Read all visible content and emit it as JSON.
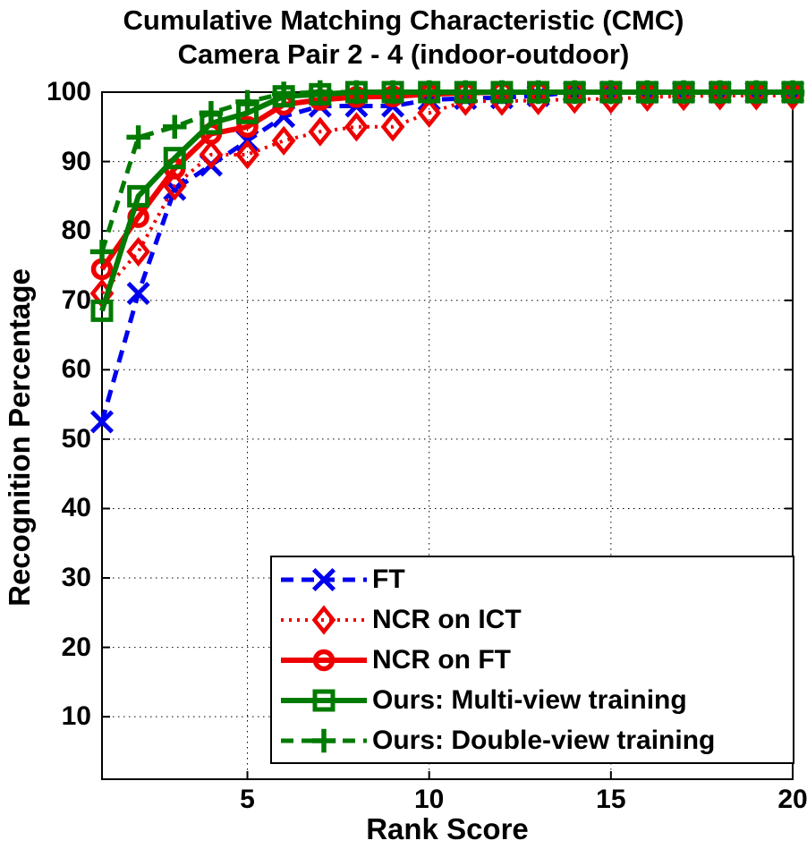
{
  "chart_data": {
    "type": "line",
    "title": "Cumulative Matching Characteristic (CMC)",
    "subtitle": "Camera Pair 2 - 4 (indoor-outdoor)",
    "xlabel": "Rank Score",
    "ylabel": "Recognition Percentage",
    "xlim": [
      1,
      20
    ],
    "ylim": [
      1,
      100
    ],
    "xticks": [
      5,
      10,
      15,
      20
    ],
    "yticks": [
      10,
      20,
      30,
      40,
      50,
      60,
      70,
      80,
      90,
      100
    ],
    "grid": true,
    "grid_style": "dotted",
    "legend_position": "lower-right",
    "x": [
      1,
      2,
      3,
      4,
      5,
      6,
      7,
      8,
      9,
      10,
      11,
      12,
      13,
      14,
      15,
      16,
      17,
      18,
      19,
      20
    ],
    "series": [
      {
        "name": "FT",
        "color": "#0000ee",
        "line_style": "dashed",
        "marker": "x",
        "values": [
          52.5,
          71,
          86,
          89.5,
          93,
          96.5,
          98,
          98,
          98,
          98.9,
          99.1,
          99.2,
          99.5,
          100,
          100,
          100,
          100,
          100,
          100,
          100
        ]
      },
      {
        "name": "NCR on ICT",
        "color": "#ee0000",
        "line_style": "dotted",
        "marker": "diamond",
        "values": [
          71,
          77,
          86.5,
          91,
          91,
          93,
          94.3,
          95,
          95,
          97,
          98.7,
          98.7,
          98.8,
          99,
          99,
          99.3,
          99.4,
          99.5,
          99.5,
          99.5
        ]
      },
      {
        "name": "NCR on FT",
        "color": "#ee0000",
        "line_style": "solid",
        "marker": "circle",
        "values": [
          74.5,
          82,
          89,
          94,
          95,
          98.2,
          98.9,
          99.3,
          99.4,
          99.7,
          99.9,
          100,
          100,
          100,
          100,
          100,
          100,
          100,
          100,
          100
        ]
      },
      {
        "name": "Ours: Multi-view training",
        "color": "#007a00",
        "line_style": "solid",
        "marker": "square",
        "values": [
          68.5,
          85,
          90.5,
          95.5,
          97,
          99.4,
          99.7,
          100,
          100,
          100,
          100,
          100,
          100,
          100,
          100,
          100,
          100,
          100,
          100,
          100
        ]
      },
      {
        "name": "Ours: Double-view training",
        "color": "#007a00",
        "line_style": "dashed",
        "marker": "plus",
        "values": [
          77,
          93.5,
          95,
          97,
          98.6,
          99.8,
          100,
          100,
          100,
          100,
          100,
          100,
          100,
          100,
          100,
          100,
          100,
          100,
          100,
          100
        ]
      }
    ]
  }
}
